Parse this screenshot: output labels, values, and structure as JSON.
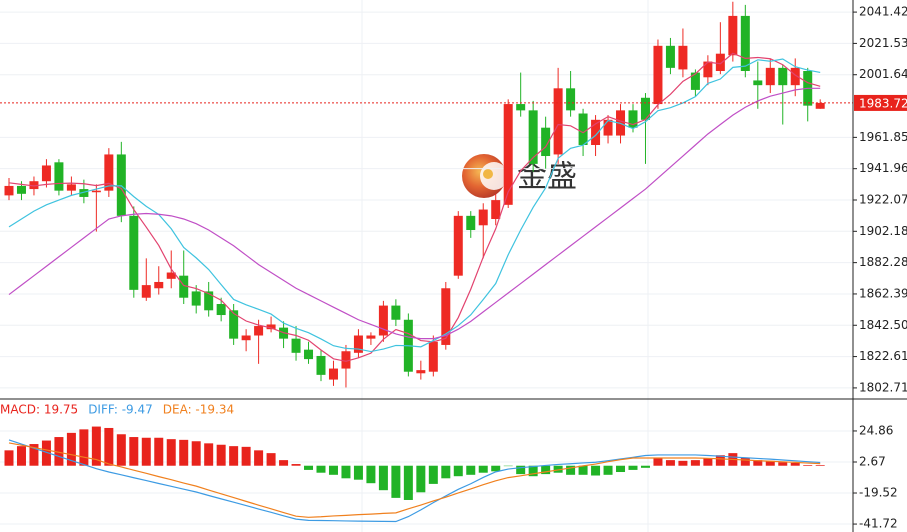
{
  "chart_data": [
    {
      "type": "candlestick",
      "watermark": "金盛",
      "up_color": "#ee2a24",
      "down_color": "#21b326",
      "open": [
        1925,
        1931,
        1929,
        1934,
        1946,
        1928,
        1929,
        1927,
        1928,
        1951,
        1912,
        1860,
        1866,
        1872,
        1874,
        1864,
        1864,
        1856,
        1852,
        1833,
        1836,
        1840,
        1841,
        1834,
        1827,
        1823,
        1808,
        1815,
        1825,
        1834,
        1836,
        1855,
        1846,
        1812,
        1813,
        1830,
        1874,
        1912,
        1906,
        1910,
        1919,
        1983,
        1979,
        1968,
        1951,
        1993,
        1977,
        1957,
        1963,
        1963,
        1979,
        1987,
        1983,
        2020,
        2005,
        2003,
        2000,
        2004,
        2014,
        2039,
        1998,
        1995,
        2006,
        1995,
        2004,
        1980
      ],
      "high": [
        1936,
        1934,
        1937,
        1948,
        1948,
        1937,
        1935,
        1932,
        1955,
        1959,
        1918,
        1885,
        1880,
        1890,
        1890,
        1868,
        1870,
        1860,
        1856,
        1840,
        1846,
        1848,
        1845,
        1842,
        1832,
        1827,
        1820,
        1830,
        1840,
        1838,
        1858,
        1859,
        1850,
        1820,
        1836,
        1870,
        1915,
        1915,
        1920,
        1926,
        1986,
        2003,
        1985,
        1975,
        2006,
        2004,
        1980,
        1976,
        1976,
        1983,
        1983,
        1990,
        2024,
        2025,
        2031,
        2005,
        2014,
        2035,
        2048,
        2046,
        2010,
        2012,
        2008,
        2012,
        2006,
        1986
      ],
      "low": [
        1922,
        1922,
        1925,
        1930,
        1925,
        1925,
        1920,
        1902,
        1924,
        1908,
        1860,
        1858,
        1862,
        1866,
        1856,
        1850,
        1848,
        1845,
        1830,
        1826,
        1818,
        1838,
        1828,
        1820,
        1818,
        1807,
        1804,
        1803,
        1822,
        1830,
        1832,
        1842,
        1810,
        1808,
        1810,
        1827,
        1872,
        1898,
        1885,
        1906,
        1917,
        1975,
        1940,
        1942,
        1945,
        1975,
        1950,
        1950,
        1958,
        1958,
        1965,
        1945,
        1980,
        2002,
        2000,
        1988,
        1995,
        2002,
        2010,
        2000,
        1980,
        1990,
        1970,
        1988,
        1972,
        1980
      ],
      "close": [
        1931,
        1926,
        1934,
        1944,
        1928,
        1932,
        1924,
        1928,
        1951,
        1912,
        1865,
        1868,
        1870,
        1876,
        1860,
        1855,
        1852,
        1849,
        1834,
        1836,
        1842,
        1843,
        1834,
        1825,
        1821,
        1811,
        1815,
        1826,
        1836,
        1836,
        1855,
        1846,
        1813,
        1814,
        1832,
        1866,
        1912,
        1903,
        1916,
        1922,
        1983,
        1979,
        1945,
        1950,
        1993,
        1979,
        1957,
        1973,
        1973,
        1979,
        1968,
        1973,
        2020,
        2006,
        2020,
        1992,
        2010,
        2015,
        2039,
        2004,
        1995,
        2006,
        1995,
        2006,
        1982,
        1983.72
      ],
      "lines": [
        {
          "color": "#e2436f",
          "values": [
            1933,
            1932,
            1931,
            1932,
            1932.6,
            1932.8,
            1932.4,
            1931.2,
            1932.6,
            1929.4,
            1916,
            1904.8,
            1893.2,
            1878.2,
            1867.8,
            1865.8,
            1862.6,
            1858.4,
            1850,
            1845.2,
            1842.6,
            1840.8,
            1837.8,
            1836,
            1833,
            1826.8,
            1821.2,
            1819.6,
            1821.8,
            1824.8,
            1833.6,
            1839.8,
            1837.2,
            1832.8,
            1832,
            1834.2,
            1847.4,
            1865.4,
            1885.8,
            1903.8,
            1927.2,
            1940.6,
            1949,
            1955.8,
            1970,
            1969.2,
            1964.8,
            1970.4,
            1975,
            1972.2,
            1970,
            1973.2,
            1982.6,
            1989.2,
            1997.4,
            2002.2,
            2009.6,
            2008.6,
            2015.2,
            2012,
            2012.6,
            2011.8,
            2008,
            2001.4,
            1996.6,
            1994.3
          ]
        },
        {
          "color": "#3fc3df",
          "values": [
            1905,
            1910,
            1915,
            1919,
            1922,
            1925,
            1927,
            1929,
            1931,
            1931.1,
            1924.2,
            1918,
            1912.9,
            1903.8,
            1891.9,
            1885.3,
            1877.9,
            1868.3,
            1858.9,
            1855.5,
            1852.6,
            1849.6,
            1843.9,
            1840.6,
            1837.8,
            1833.8,
            1829.5,
            1827.8,
            1827.4,
            1825.8,
            1827.4,
            1829.7,
            1829.5,
            1828.8,
            1832.8,
            1837,
            1842.3,
            1849.1,
            1858.9,
            1869,
            1887.3,
            1903,
            1917.4,
            1929.8,
            1948.6,
            1954.9,
            1956.9,
            1963.1,
            1972.5,
            1970.7,
            1967.4,
            1971.8,
            1978.8,
            1980.7,
            1983.7,
            1987.7,
            1996.1,
            1998.9,
            2006.3,
            2007.1,
            2011.1,
            2010.2,
            2011.6,
            2006.7,
            2004.6,
            2003.1
          ]
        },
        {
          "color": "#c04fc6",
          "values": [
            1862,
            1868,
            1874,
            1880,
            1886,
            1892,
            1898,
            1904,
            1910,
            1912,
            1913,
            1913.5,
            1913,
            1912,
            1910,
            1907,
            1903,
            1898,
            1893,
            1887,
            1881,
            1876,
            1871,
            1866,
            1862,
            1858,
            1854,
            1850,
            1846,
            1843,
            1840,
            1837,
            1835,
            1834,
            1834,
            1836,
            1840,
            1845,
            1851,
            1857,
            1863,
            1869,
            1875,
            1881,
            1887,
            1893,
            1899,
            1905,
            1911,
            1917,
            1923,
            1929,
            1936,
            1943,
            1950,
            1957,
            1964,
            1970,
            1976,
            1981,
            1985,
            1988,
            1990,
            1992,
            1993,
            1993
          ]
        }
      ],
      "last_price": 1983.72,
      "last_color": "#e8231c",
      "ylim": [
        1796.3,
        2049.1
      ],
      "yticks": [
        2041.42,
        2021.53,
        2001.64,
        1961.85,
        1941.96,
        1922.07,
        1902.18,
        1882.28,
        1862.39,
        {
          "value": 1842.5,
          "label": "1842.50"
        },
        1822.61,
        1802.71
      ],
      "grid": true
    },
    {
      "type": "macd",
      "series": [
        {
          "name": "MACD: 19.75",
          "color": "#e8231c",
          "down_color": "#21b326",
          "values": [
            11,
            14,
            15.5,
            18,
            20.5,
            23.5,
            26,
            28,
            27,
            22.5,
            20.5,
            20,
            20,
            19,
            18.5,
            17.5,
            16,
            15,
            14,
            13.5,
            11,
            9,
            4,
            1.2,
            -3,
            -5,
            -6.5,
            -9,
            -10,
            -12.5,
            -17.5,
            -23,
            -24.5,
            -19,
            -13,
            -9,
            -7.5,
            -6.5,
            -5,
            -4,
            -0.3,
            -6,
            -7.5,
            -6,
            -5,
            -6.5,
            -6.5,
            -7,
            -6.5,
            -4.5,
            -3,
            -1.5,
            5.5,
            4,
            3.5,
            4,
            5.5,
            7.5,
            9,
            5.5,
            4,
            3.5,
            2.5,
            2,
            0.5,
            0.5
          ]
        },
        {
          "name": "DIFF: -9.47",
          "color": "#3d9be3",
          "values": [
            18.4,
            15.5,
            12.5,
            9.6,
            6.6,
            3.7,
            0.8,
            -2.1,
            -4.5,
            -6.5,
            -8.6,
            -10.6,
            -12.7,
            -14.7,
            -16.8,
            -18.8,
            -21.3,
            -23.7,
            -26.1,
            -28.5,
            -31,
            -33.3,
            -35.8,
            -38.2,
            -39.1,
            -39.2,
            -39.3,
            -39.5,
            -39.6,
            -39.7,
            -39.8,
            -39.9,
            -36.4,
            -31.6,
            -26.4,
            -21.6,
            -16.9,
            -12.9,
            -8.4,
            -4.4,
            -2.4,
            -1.4,
            -0.6,
            0.2,
            0.9,
            1.4,
            2,
            2.5,
            3.6,
            4.8,
            6,
            7.3,
            7.7,
            7.7,
            7.7,
            7.7,
            7.3,
            6.8,
            6.2,
            5.7,
            5.2,
            4.7,
            4.1,
            3.5,
            2.9,
            2.3
          ]
        },
        {
          "name": "DEA: -19.34",
          "color": "#f0801e",
          "values": [
            16.3,
            14.7,
            13,
            11.3,
            9.6,
            7.9,
            6.1,
            4.4,
            1.3,
            -0.9,
            -3.2,
            -5.4,
            -7.8,
            -10,
            -12.4,
            -14.6,
            -17.4,
            -20.1,
            -22.8,
            -25.5,
            -28.2,
            -30.8,
            -33.5,
            -36.1,
            -36.9,
            -36.5,
            -35.9,
            -35.5,
            -35,
            -34.6,
            -34.1,
            -33.7,
            -30.8,
            -28.1,
            -25.2,
            -22.5,
            -19.5,
            -16.6,
            -13.6,
            -10.8,
            -8.5,
            -7.2,
            -5.8,
            -4.4,
            -3,
            -1.6,
            -0.1,
            1.2,
            2.9,
            4.3,
            5.5,
            5.5,
            5.5,
            5.5,
            5.5,
            5.5,
            5.3,
            4.9,
            4.5,
            4.1,
            3.6,
            3.2,
            2.8,
            2.4,
            1.9,
            1.5
          ]
        }
      ],
      "ylim": [
        -47.4,
        47.0
      ],
      "yticks": [
        24.86,
        2.67,
        -19.52,
        -41.72
      ],
      "grid": true
    }
  ]
}
